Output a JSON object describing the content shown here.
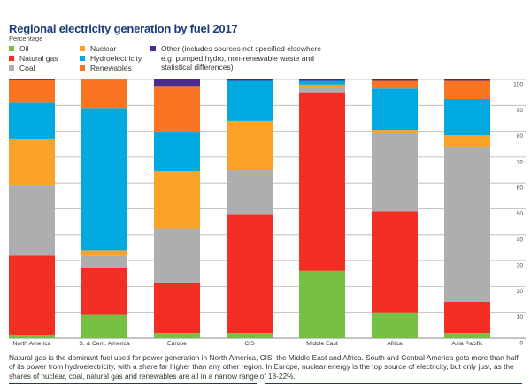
{
  "title": "Regional electricity generation by fuel 2017",
  "subtitle": "Percentage",
  "legend": {
    "oil": "Oil",
    "natural_gas": "Natural gas",
    "coal": "Coal",
    "nuclear": "Nuclear",
    "hydro": "Hydroelectricity",
    "renewables": "Renewables",
    "other_line1": "Other (includes sources not specified elsewhere",
    "other_line2": "e.g. pumped hydro, non-renewable waste and",
    "other_line3": "statistical differences)"
  },
  "colors": {
    "Oil": "#76c043",
    "Natural gas": "#f32f24",
    "Coal": "#aeaeb0",
    "Nuclear": "#fba328",
    "Hydroelectricity": "#00a9e0",
    "Renewables": "#f97423",
    "Other": "#4b2a8e"
  },
  "chart_data": {
    "type": "bar",
    "stacked": true,
    "title": "Regional electricity generation by fuel 2017",
    "subtitle": "Percentage",
    "xlabel": "",
    "ylabel": "Percentage",
    "ylim": [
      0,
      100
    ],
    "yticks": [
      0,
      10,
      20,
      30,
      40,
      50,
      60,
      70,
      80,
      90,
      100
    ],
    "y_axis_side": "right",
    "grid": true,
    "legend_position": "top",
    "categories": [
      "North America",
      "S. & Cent. America",
      "Europe",
      "CIS",
      "Middle East",
      "Africa",
      "Asia Pacific"
    ],
    "series": [
      {
        "name": "Oil",
        "values": [
          1,
          9,
          2,
          2,
          26,
          10,
          2
        ]
      },
      {
        "name": "Natural gas",
        "values": [
          31,
          18,
          19.5,
          46,
          69,
          39,
          12
        ]
      },
      {
        "name": "Coal",
        "values": [
          27,
          5,
          21,
          17,
          2,
          30,
          60
        ]
      },
      {
        "name": "Nuclear",
        "values": [
          18,
          2,
          22,
          19,
          1,
          1.5,
          4.5
        ]
      },
      {
        "name": "Hydroelectricity",
        "values": [
          14,
          55,
          15,
          15.5,
          1.5,
          16,
          14
        ]
      },
      {
        "name": "Renewables",
        "values": [
          8.7,
          11,
          18,
          0,
          0,
          3,
          7
        ]
      },
      {
        "name": "Other",
        "values": [
          0.3,
          0,
          2.5,
          0.5,
          0.5,
          0.5,
          0.5
        ]
      }
    ]
  },
  "footer": "Natural gas is the dominant fuel used for power generation in North America, CIS, the Middle East and Africa. South and Central America gets more than half of its power from hydroelectricity, with a share far higher than any other region. In Europe, nuclear energy is the top source of electricity, but only just, as the shares of nuclear, coal, natural gas and renewables are all in a narrow range of 18-22%."
}
